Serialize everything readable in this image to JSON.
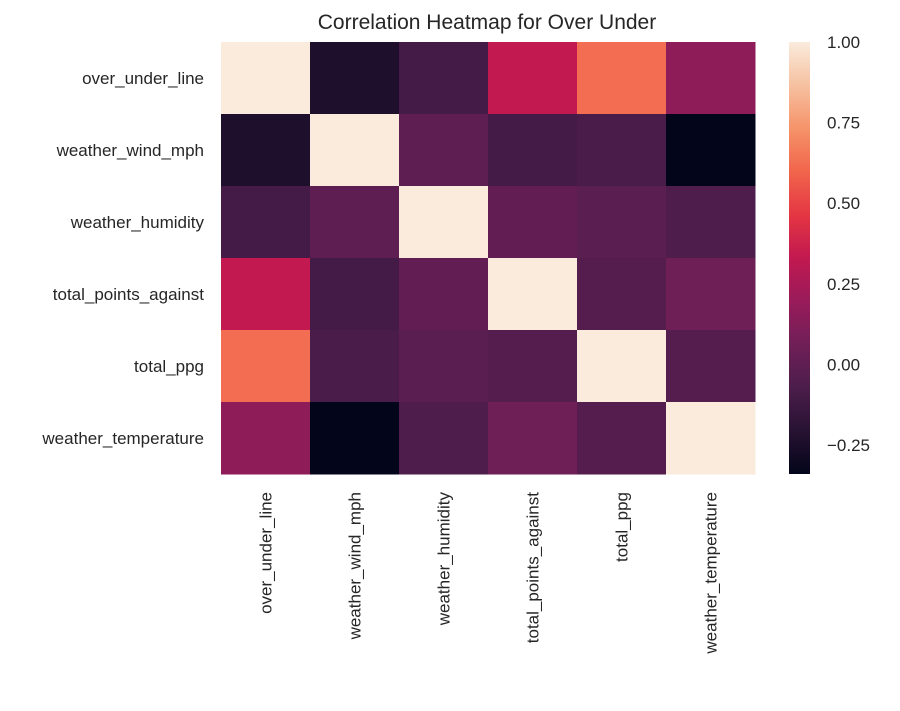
{
  "chart_data": {
    "type": "heatmap",
    "title": "Correlation Heatmap for Over Under",
    "row_labels": [
      "over_under_line",
      "weather_wind_mph",
      "weather_humidity",
      "total_points_against",
      "total_ppg",
      "weather_temperature"
    ],
    "col_labels": [
      "over_under_line",
      "weather_wind_mph",
      "weather_humidity",
      "total_points_against",
      "total_ppg",
      "weather_temperature"
    ],
    "values": [
      [
        1.0,
        -0.24,
        -0.1,
        0.33,
        0.62,
        0.16
      ],
      [
        -0.24,
        1.0,
        0.0,
        -0.1,
        -0.08,
        -0.34
      ],
      [
        -0.1,
        0.0,
        1.0,
        0.01,
        -0.02,
        -0.06
      ],
      [
        0.33,
        -0.1,
        0.01,
        1.0,
        -0.04,
        0.05
      ],
      [
        0.62,
        -0.08,
        -0.02,
        -0.04,
        1.0,
        -0.04
      ],
      [
        0.16,
        -0.34,
        -0.06,
        0.05,
        -0.04,
        1.0
      ]
    ],
    "vmin": -0.34,
    "vmax": 1.0,
    "colorbar_ticks": [
      "1.00",
      "0.75",
      "0.50",
      "0.25",
      "0.00",
      "−0.25"
    ],
    "colorbar_tick_values": [
      1.0,
      0.75,
      0.5,
      0.25,
      0.0,
      -0.25
    ],
    "colormap": "rocket",
    "grid": false
  }
}
